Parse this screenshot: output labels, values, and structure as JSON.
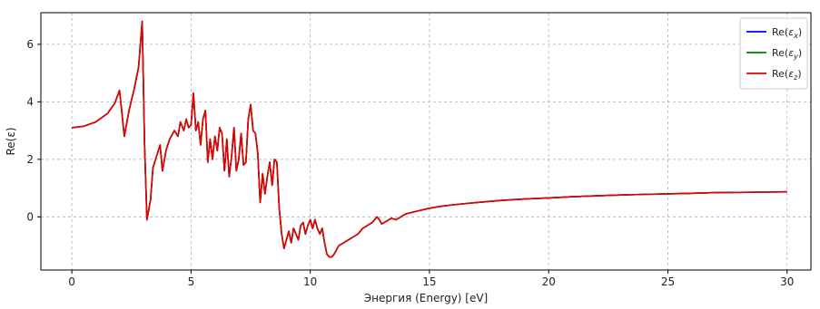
{
  "chart_data": {
    "type": "line",
    "title": "",
    "xlabel": "Энергия (Energy) [eV]",
    "ylabel": "Re(ε)",
    "xlim": [
      -1.3,
      31.0
    ],
    "ylim": [
      -1.85,
      7.1
    ],
    "x_ticks": [
      0,
      5,
      10,
      15,
      20,
      25,
      30
    ],
    "x_tick_labels": [
      "0",
      "5",
      "10",
      "15",
      "20",
      "25",
      "30"
    ],
    "y_ticks": [
      0,
      2,
      4,
      6
    ],
    "y_tick_labels": [
      "0",
      "2",
      "4",
      "6"
    ],
    "grid": true,
    "grid_style": "dashed",
    "legend_position": "top-right",
    "x": [
      0,
      0.5,
      1.0,
      1.5,
      1.8,
      2.0,
      2.1,
      2.2,
      2.4,
      2.6,
      2.8,
      2.95,
      3.05,
      3.15,
      3.3,
      3.4,
      3.55,
      3.7,
      3.8,
      3.95,
      4.1,
      4.3,
      4.45,
      4.55,
      4.7,
      4.8,
      4.9,
      5.0,
      5.1,
      5.2,
      5.3,
      5.4,
      5.5,
      5.6,
      5.7,
      5.8,
      5.9,
      6.0,
      6.1,
      6.2,
      6.3,
      6.4,
      6.5,
      6.6,
      6.7,
      6.8,
      6.9,
      7.0,
      7.1,
      7.2,
      7.3,
      7.4,
      7.5,
      7.6,
      7.7,
      7.8,
      7.9,
      8.0,
      8.1,
      8.2,
      8.3,
      8.4,
      8.5,
      8.6,
      8.7,
      8.8,
      8.9,
      9.0,
      9.1,
      9.2,
      9.3,
      9.4,
      9.5,
      9.6,
      9.7,
      9.8,
      9.9,
      10.0,
      10.1,
      10.2,
      10.3,
      10.4,
      10.5,
      10.6,
      10.7,
      10.8,
      10.9,
      11.0,
      11.2,
      11.4,
      11.6,
      11.8,
      12.0,
      12.2,
      12.4,
      12.6,
      12.8,
      12.9,
      13.0,
      13.2,
      13.4,
      13.6,
      13.8,
      14.0,
      14.5,
      15.0,
      15.5,
      16.0,
      17.0,
      18.0,
      19.0,
      20.0,
      21.0,
      22.0,
      23.0,
      24.0,
      25.0,
      26.0,
      27.0,
      28.0,
      29.0,
      30.0
    ],
    "series": [
      {
        "name": "Re(εx)",
        "color": "#0000ff",
        "values": [
          3.1,
          3.15,
          3.3,
          3.6,
          3.95,
          4.4,
          3.6,
          2.8,
          3.7,
          4.4,
          5.2,
          6.8,
          2.5,
          -0.1,
          0.6,
          1.7,
          2.1,
          2.5,
          1.6,
          2.3,
          2.7,
          3.0,
          2.8,
          3.3,
          3.0,
          3.4,
          3.1,
          3.2,
          4.3,
          3.0,
          3.3,
          2.5,
          3.4,
          3.7,
          1.9,
          2.7,
          2.0,
          2.8,
          2.3,
          3.1,
          2.9,
          1.6,
          2.7,
          1.4,
          2.1,
          3.1,
          1.6,
          2.0,
          2.9,
          1.8,
          1.9,
          3.4,
          3.9,
          3.0,
          2.9,
          2.2,
          0.5,
          1.5,
          0.8,
          1.4,
          1.9,
          1.1,
          2.0,
          1.9,
          0.3,
          -0.6,
          -1.1,
          -0.8,
          -0.5,
          -0.9,
          -0.4,
          -0.6,
          -0.8,
          -0.3,
          -0.2,
          -0.6,
          -0.3,
          -0.1,
          -0.4,
          -0.1,
          -0.4,
          -0.6,
          -0.4,
          -0.9,
          -1.3,
          -1.4,
          -1.4,
          -1.3,
          -1.0,
          -0.9,
          -0.8,
          -0.7,
          -0.6,
          -0.4,
          -0.3,
          -0.2,
          0.0,
          -0.1,
          -0.25,
          -0.15,
          -0.05,
          -0.1,
          0.0,
          0.1,
          0.2,
          0.3,
          0.37,
          0.42,
          0.5,
          0.57,
          0.62,
          0.66,
          0.7,
          0.73,
          0.76,
          0.78,
          0.8,
          0.82,
          0.84,
          0.85,
          0.86,
          0.87
        ]
      },
      {
        "name": "Re(εy)",
        "color": "#008000",
        "values": [
          3.1,
          3.15,
          3.3,
          3.6,
          3.95,
          4.4,
          3.6,
          2.8,
          3.7,
          4.4,
          5.2,
          6.8,
          2.5,
          -0.1,
          0.6,
          1.7,
          2.1,
          2.5,
          1.6,
          2.3,
          2.7,
          3.0,
          2.8,
          3.3,
          3.0,
          3.4,
          3.1,
          3.2,
          4.3,
          3.0,
          3.3,
          2.5,
          3.4,
          3.7,
          1.9,
          2.7,
          2.0,
          2.8,
          2.3,
          3.1,
          2.9,
          1.6,
          2.7,
          1.4,
          2.1,
          3.1,
          1.6,
          2.0,
          2.9,
          1.8,
          1.9,
          3.4,
          3.9,
          3.0,
          2.9,
          2.2,
          0.5,
          1.5,
          0.8,
          1.4,
          1.9,
          1.1,
          2.0,
          1.9,
          0.3,
          -0.6,
          -1.1,
          -0.8,
          -0.5,
          -0.9,
          -0.4,
          -0.6,
          -0.8,
          -0.3,
          -0.2,
          -0.6,
          -0.3,
          -0.1,
          -0.4,
          -0.1,
          -0.4,
          -0.6,
          -0.4,
          -0.9,
          -1.3,
          -1.4,
          -1.4,
          -1.3,
          -1.0,
          -0.9,
          -0.8,
          -0.7,
          -0.6,
          -0.4,
          -0.3,
          -0.2,
          0.0,
          -0.1,
          -0.25,
          -0.15,
          -0.05,
          -0.1,
          0.0,
          0.1,
          0.2,
          0.3,
          0.37,
          0.42,
          0.5,
          0.57,
          0.62,
          0.66,
          0.7,
          0.73,
          0.76,
          0.78,
          0.8,
          0.82,
          0.84,
          0.85,
          0.86,
          0.87
        ]
      },
      {
        "name": "Re(εz)",
        "color": "#e60000",
        "values": [
          3.1,
          3.15,
          3.3,
          3.6,
          3.95,
          4.4,
          3.6,
          2.8,
          3.7,
          4.4,
          5.2,
          6.8,
          2.5,
          -0.1,
          0.6,
          1.7,
          2.1,
          2.5,
          1.6,
          2.3,
          2.7,
          3.0,
          2.8,
          3.3,
          3.0,
          3.4,
          3.1,
          3.2,
          4.3,
          3.0,
          3.3,
          2.5,
          3.4,
          3.7,
          1.9,
          2.7,
          2.0,
          2.8,
          2.3,
          3.1,
          2.9,
          1.6,
          2.7,
          1.4,
          2.1,
          3.1,
          1.6,
          2.0,
          2.9,
          1.8,
          1.9,
          3.4,
          3.9,
          3.0,
          2.9,
          2.2,
          0.5,
          1.5,
          0.8,
          1.4,
          1.9,
          1.1,
          2.0,
          1.9,
          0.3,
          -0.6,
          -1.1,
          -0.8,
          -0.5,
          -0.9,
          -0.4,
          -0.6,
          -0.8,
          -0.3,
          -0.2,
          -0.6,
          -0.3,
          -0.1,
          -0.4,
          -0.1,
          -0.4,
          -0.6,
          -0.4,
          -0.9,
          -1.3,
          -1.4,
          -1.4,
          -1.3,
          -1.0,
          -0.9,
          -0.8,
          -0.7,
          -0.6,
          -0.4,
          -0.3,
          -0.2,
          0.0,
          -0.1,
          -0.25,
          -0.15,
          -0.05,
          -0.1,
          0.0,
          0.1,
          0.2,
          0.3,
          0.37,
          0.42,
          0.5,
          0.57,
          0.62,
          0.66,
          0.7,
          0.73,
          0.76,
          0.78,
          0.8,
          0.82,
          0.84,
          0.85,
          0.86,
          0.87
        ]
      }
    ],
    "legend": {
      "entries": [
        {
          "prefix": "Re(",
          "symbol": "ε",
          "sub": "x",
          "suffix": ")"
        },
        {
          "prefix": "Re(",
          "symbol": "ε",
          "sub": "y",
          "suffix": ")"
        },
        {
          "prefix": "Re(",
          "symbol": "ε",
          "sub": "z",
          "suffix": ")"
        }
      ]
    },
    "colors": {
      "grid": "#b0b0b0",
      "axes": "#000000",
      "legend_border": "#cccccc"
    }
  }
}
